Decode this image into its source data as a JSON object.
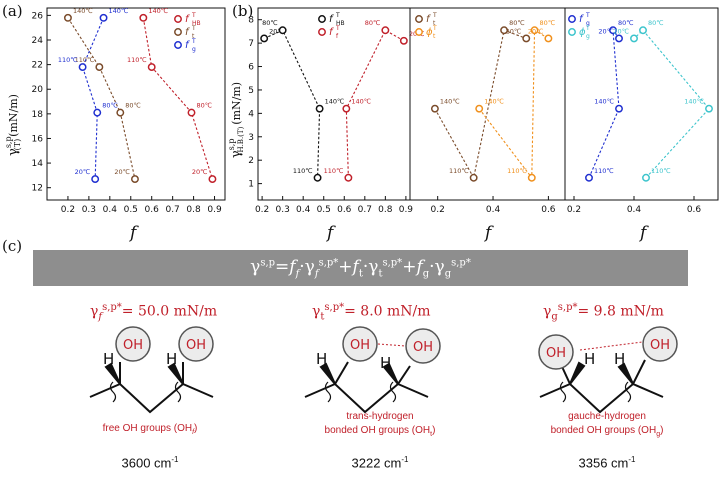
{
  "panel_labels": {
    "a": "(a)",
    "b": "(b)",
    "c": "(c)"
  },
  "axis_text": {
    "a_ylabel": "γ",
    "a_ylabel_sup": "s,p",
    "a_ylabel_sub": "(T)",
    "a_ylabel_unit": "(mN/m)",
    "b_ylabel": "γ",
    "b_ylabel_sup": "s,p",
    "b_ylabel_sub": "H.B.(T)",
    "b_ylabel_unit": "(mN/m)",
    "xlabel": "f"
  },
  "colors": {
    "hb": "#c0202a",
    "f": "#111111",
    "t": "#7a4b2a",
    "phi_t": "#f0901c",
    "g": "#1f2fd0",
    "phi_g": "#3cc4cc"
  },
  "chart_data": [
    {
      "type": "scatter",
      "panel": "a",
      "xlim": [
        0.1,
        0.95
      ],
      "ylim": [
        11,
        26.6
      ],
      "xticks": [
        "0.2",
        "0.3",
        "0.4",
        "0.5",
        "0.6",
        "0.7",
        "0.8",
        "0.9"
      ],
      "yticks": [
        "12",
        "14",
        "16",
        "18",
        "20",
        "22",
        "24",
        "26"
      ],
      "legend": [
        "f",
        "f",
        "f"
      ],
      "legend_sup": [
        "T",
        "T",
        "T"
      ],
      "legend_sub": [
        "HB",
        "t",
        "g"
      ],
      "series": [
        {
          "key": "hb",
          "points": [
            {
              "x": 0.56,
              "y": 25.8,
              "label": "140℃"
            },
            {
              "x": 0.6,
              "y": 21.8,
              "label": "110℃"
            },
            {
              "x": 0.79,
              "y": 18.1,
              "label": "80℃"
            },
            {
              "x": 0.89,
              "y": 12.7,
              "label": "20℃"
            }
          ]
        },
        {
          "key": "t",
          "points": [
            {
              "x": 0.2,
              "y": 25.8,
              "label": "140℃"
            },
            {
              "x": 0.35,
              "y": 21.8,
              "label": "110℃"
            },
            {
              "x": 0.45,
              "y": 18.1,
              "label": "80℃"
            },
            {
              "x": 0.52,
              "y": 12.7,
              "label": "20℃"
            }
          ]
        },
        {
          "key": "g",
          "points": [
            {
              "x": 0.37,
              "y": 25.8,
              "label": "140℃"
            },
            {
              "x": 0.27,
              "y": 21.8,
              "label": "110℃"
            },
            {
              "x": 0.34,
              "y": 18.1,
              "label": "80℃"
            },
            {
              "x": 0.33,
              "y": 12.7,
              "label": "20℃"
            }
          ]
        }
      ]
    },
    {
      "type": "scatter",
      "panel": "b1",
      "xlim": [
        0.18,
        0.92
      ],
      "ylim": [
        0.3,
        8.5
      ],
      "xticks": [
        "0.2",
        "0.3",
        "0.4",
        "0.5",
        "0.6",
        "0.7",
        "0.8",
        "0.9"
      ],
      "yticks": [
        "1",
        "2",
        "3",
        "4",
        "5",
        "6",
        "7",
        "8"
      ],
      "legend": [
        "f",
        "f"
      ],
      "legend_sup": [
        "T",
        "T"
      ],
      "legend_sub": [
        "HB",
        "f"
      ],
      "series": [
        {
          "key": "f",
          "points": [
            {
              "x": 0.21,
              "y": 7.2,
              "label": "20℃"
            },
            {
              "x": 0.3,
              "y": 7.55,
              "label": "80℃"
            },
            {
              "x": 0.48,
              "y": 4.2,
              "label": "140℃"
            },
            {
              "x": 0.47,
              "y": 1.25,
              "label": "110℃"
            }
          ]
        },
        {
          "key": "hb",
          "points": [
            {
              "x": 0.89,
              "y": 7.1,
              "label": "20℃"
            },
            {
              "x": 0.8,
              "y": 7.55,
              "label": "80℃"
            },
            {
              "x": 0.61,
              "y": 4.2,
              "label": "140℃"
            },
            {
              "x": 0.62,
              "y": 1.25,
              "label": "110℃"
            }
          ]
        }
      ]
    },
    {
      "type": "scatter",
      "panel": "b2",
      "xlim": [
        0.1,
        0.66
      ],
      "ylim": [
        0.3,
        8.5
      ],
      "xticks": [
        "0.2",
        "0.4",
        "0.6"
      ],
      "legend": [
        "f",
        "ϕ"
      ],
      "legend_sup": [
        "T",
        "T"
      ],
      "legend_sub": [
        "t",
        "t"
      ],
      "series": [
        {
          "key": "t",
          "points": [
            {
              "x": 0.19,
              "y": 4.2,
              "label": "140℃"
            },
            {
              "x": 0.33,
              "y": 1.25,
              "label": "110℃"
            },
            {
              "x": 0.44,
              "y": 7.55,
              "label": "80℃"
            },
            {
              "x": 0.52,
              "y": 7.2,
              "label": "20℃"
            }
          ]
        },
        {
          "key": "phi_t",
          "points": [
            {
              "x": 0.35,
              "y": 4.2,
              "label": "140℃"
            },
            {
              "x": 0.54,
              "y": 1.25,
              "label": "110℃"
            },
            {
              "x": 0.55,
              "y": 7.55,
              "label": "80℃"
            },
            {
              "x": 0.6,
              "y": 7.2,
              "label": "20℃"
            }
          ]
        }
      ]
    },
    {
      "type": "scatter",
      "panel": "b3",
      "xlim": [
        0.17,
        0.68
      ],
      "ylim": [
        0.3,
        8.5
      ],
      "xticks": [
        "0.2",
        "0.4",
        "0.6"
      ],
      "legend": [
        "f",
        "ϕ"
      ],
      "legend_sup": [
        "T",
        "T"
      ],
      "legend_sub": [
        "g",
        "g"
      ],
      "series": [
        {
          "key": "g",
          "points": [
            {
              "x": 0.25,
              "y": 1.25,
              "label": "110℃"
            },
            {
              "x": 0.35,
              "y": 4.2,
              "label": "140℃"
            },
            {
              "x": 0.33,
              "y": 7.55,
              "label": "80℃"
            },
            {
              "x": 0.35,
              "y": 7.2,
              "label": "20℃"
            }
          ]
        },
        {
          "key": "phi_g",
          "points": [
            {
              "x": 0.44,
              "y": 1.25,
              "label": "110℃"
            },
            {
              "x": 0.65,
              "y": 4.2,
              "label": "140℃"
            },
            {
              "x": 0.43,
              "y": 7.55,
              "label": "80℃"
            },
            {
              "x": 0.4,
              "y": 7.2,
              "label": "20℃"
            }
          ]
        }
      ]
    }
  ],
  "equation": "γˢ'ᵖ=f_f·γ_fˢ'ᵖ*+f_t·γ_tˢ'ᵖ*+f_g·γ_gˢ'ᵖ*",
  "equation_display": "γs,p = ff·γfs,p* + ft·γts,p* + fg·γgs,p*",
  "cards": [
    {
      "gamma": "γ",
      "gamma_sub": "f",
      "gamma_sup": "s,p*",
      "value": "= 50.0 mN/m",
      "desc1": "free OH groups (OH",
      "desc1_sub": "f",
      "desc1_end": ")",
      "desc2": "",
      "freq": "3600 cm",
      "freq_sup": "-1"
    },
    {
      "gamma": "γ",
      "gamma_sub": "t",
      "gamma_sup": "s,p*",
      "value": "= 8.0 mN/m",
      "desc1": "trans-hydrogen",
      "desc2": "bonded OH groups (OH",
      "desc2_sub": "t",
      "desc2_end": ")",
      "freq": "3222 cm",
      "freq_sup": "-1"
    },
    {
      "gamma": "γ",
      "gamma_sub": "g",
      "gamma_sup": "s,p*",
      "value": "= 9.8 mN/m",
      "desc1": "gauche-hydrogen",
      "desc2": "bonded OH groups (OH",
      "desc2_sub": "g",
      "desc2_end": ")",
      "freq": "3356 cm",
      "freq_sup": "-1"
    }
  ],
  "molecule": {
    "oh": "OH",
    "h": "H"
  }
}
